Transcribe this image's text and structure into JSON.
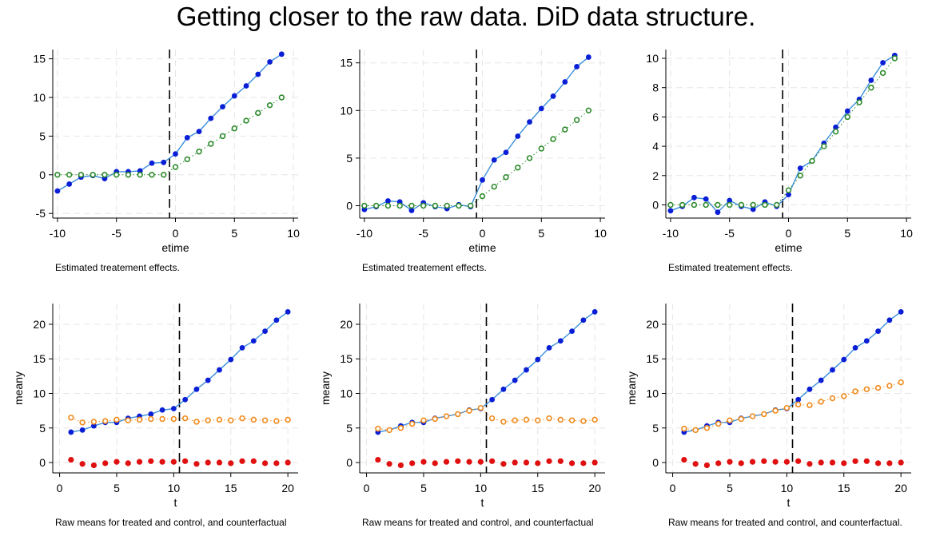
{
  "title": "Getting closer to the raw data.  DiD data structure.",
  "colors": {
    "treated_line": "#3a8fdc",
    "treated_marker": "#0a1ed6",
    "counterfactual": "#2e8b2e",
    "raw_counterfactual": "#f08a1c",
    "control": "#e01010",
    "grid": "#e6e6e6",
    "cutoff": "#000000"
  },
  "chart_data": [
    {
      "type": "scatter",
      "xlabel": "etime",
      "ylabel": "",
      "note": "Estimated treatement effects.",
      "xticks": [
        -10,
        -5,
        0,
        5,
        10
      ],
      "yticks": [
        -5,
        0,
        5,
        10,
        15
      ],
      "xlim": [
        -10.4,
        10.4
      ],
      "ylim": [
        -5.6,
        16.2
      ],
      "cutoff": -0.5,
      "grid": true,
      "series": [
        {
          "role": "estimate",
          "x": [
            -10,
            -9,
            -8,
            -7,
            -6,
            -5,
            -4,
            -3,
            -2,
            -1,
            0,
            1,
            2,
            3,
            4,
            5,
            6,
            7,
            8,
            9
          ],
          "y": [
            -2.1,
            -1.2,
            -0.3,
            -0.1,
            -0.5,
            0.4,
            0.4,
            0.5,
            1.5,
            1.6,
            2.7,
            4.8,
            5.6,
            7.3,
            8.8,
            10.2,
            11.5,
            13.0,
            14.6,
            15.6
          ]
        },
        {
          "role": "true",
          "x": [
            -10,
            -9,
            -8,
            -7,
            -6,
            -5,
            -4,
            -3,
            -2,
            -1,
            0,
            1,
            2,
            3,
            4,
            5,
            6,
            7,
            8,
            9
          ],
          "y": [
            0,
            0,
            0,
            0,
            0,
            0,
            0,
            0,
            0,
            0,
            1,
            2,
            3,
            4,
            5,
            6,
            7,
            8,
            9,
            10
          ]
        }
      ]
    },
    {
      "type": "scatter",
      "xlabel": "etime",
      "ylabel": "",
      "note": "Estimated treatement effects.",
      "xticks": [
        -10,
        -5,
        0,
        5,
        10
      ],
      "yticks": [
        0,
        5,
        10,
        15
      ],
      "xlim": [
        -10.4,
        10.4
      ],
      "ylim": [
        -1.3,
        16.4
      ],
      "cutoff": -0.5,
      "grid": true,
      "series": [
        {
          "role": "estimate",
          "x": [
            -10,
            -9,
            -8,
            -7,
            -6,
            -5,
            -4,
            -3,
            -2,
            -1,
            0,
            1,
            2,
            3,
            4,
            5,
            6,
            7,
            8,
            9
          ],
          "y": [
            -0.4,
            -0.1,
            0.5,
            0.4,
            -0.5,
            0.3,
            -0.1,
            -0.3,
            0.1,
            -0.1,
            2.7,
            4.8,
            5.6,
            7.3,
            8.8,
            10.2,
            11.5,
            13.0,
            14.6,
            15.6
          ]
        },
        {
          "role": "true",
          "x": [
            -10,
            -9,
            -8,
            -7,
            -6,
            -5,
            -4,
            -3,
            -2,
            -1,
            0,
            1,
            2,
            3,
            4,
            5,
            6,
            7,
            8,
            9
          ],
          "y": [
            0,
            0,
            0,
            0,
            0,
            0,
            0,
            0,
            0,
            0,
            1,
            2,
            3,
            4,
            5,
            6,
            7,
            8,
            9,
            10
          ]
        }
      ]
    },
    {
      "type": "scatter",
      "xlabel": "etime",
      "ylabel": "",
      "note": "Estimated treatement effects.",
      "xticks": [
        -10,
        -5,
        0,
        5,
        10
      ],
      "yticks": [
        0,
        2,
        4,
        6,
        8,
        10
      ],
      "xlim": [
        -10.4,
        10.4
      ],
      "ylim": [
        -0.9,
        10.6
      ],
      "cutoff": -0.5,
      "grid": true,
      "series": [
        {
          "role": "estimate",
          "x": [
            -10,
            -9,
            -8,
            -7,
            -6,
            -5,
            -4,
            -3,
            -2,
            -1,
            0,
            1,
            2,
            3,
            4,
            5,
            6,
            7,
            8,
            9
          ],
          "y": [
            -0.4,
            -0.1,
            0.5,
            0.4,
            -0.5,
            0.3,
            -0.1,
            -0.3,
            0.2,
            -0.1,
            0.7,
            2.5,
            3.0,
            4.2,
            5.3,
            6.4,
            7.2,
            8.5,
            9.7,
            10.2
          ]
        },
        {
          "role": "true",
          "x": [
            -10,
            -9,
            -8,
            -7,
            -6,
            -5,
            -4,
            -3,
            -2,
            -1,
            0,
            1,
            2,
            3,
            4,
            5,
            6,
            7,
            8,
            9
          ],
          "y": [
            0,
            0,
            0,
            0,
            0,
            0,
            0,
            0,
            0,
            0,
            1,
            2,
            3,
            4,
            5,
            6,
            7,
            8,
            9,
            10
          ]
        }
      ]
    },
    {
      "type": "scatter",
      "xlabel": "t",
      "ylabel": "meany",
      "note": "Raw means for treated and control, and counterfactual",
      "xticks": [
        0,
        5,
        10,
        15,
        20
      ],
      "yticks": [
        0,
        5,
        10,
        15,
        20
      ],
      "xlim": [
        -0.6,
        20.9
      ],
      "ylim": [
        -1.5,
        23.0
      ],
      "cutoff": 10.5,
      "grid": true,
      "series": [
        {
          "role": "treated",
          "x": [
            1,
            2,
            3,
            4,
            5,
            6,
            7,
            8,
            9,
            10,
            11,
            12,
            13,
            14,
            15,
            16,
            17,
            18,
            19,
            20
          ],
          "y": [
            4.4,
            4.7,
            5.3,
            5.8,
            5.8,
            6.4,
            6.7,
            7.0,
            7.6,
            7.8,
            9.1,
            10.6,
            11.9,
            13.4,
            14.9,
            16.6,
            17.6,
            19.0,
            20.6,
            21.8
          ]
        },
        {
          "role": "counterfactual",
          "x": [
            1,
            2,
            3,
            4,
            5,
            6,
            7,
            8,
            9,
            10,
            11,
            12,
            13,
            14,
            15,
            16,
            17,
            18,
            19,
            20
          ],
          "y": [
            6.5,
            5.8,
            5.9,
            6.0,
            6.2,
            6.1,
            6.2,
            6.3,
            6.3,
            6.3,
            6.4,
            5.9,
            6.1,
            6.2,
            6.1,
            6.4,
            6.2,
            6.1,
            6.0,
            6.2
          ]
        },
        {
          "role": "control",
          "x": [
            1,
            2,
            3,
            4,
            5,
            6,
            7,
            8,
            9,
            10,
            11,
            12,
            13,
            14,
            15,
            16,
            17,
            18,
            19,
            20
          ],
          "y": [
            0.4,
            -0.2,
            -0.4,
            -0.1,
            0.1,
            -0.1,
            0.1,
            0.2,
            0.1,
            0.1,
            0.2,
            -0.2,
            0.0,
            0.0,
            -0.1,
            0.2,
            0.2,
            -0.1,
            -0.1,
            0.0
          ]
        }
      ]
    },
    {
      "type": "scatter",
      "xlabel": "t",
      "ylabel": "meany",
      "note": "Raw means for treated and control, and counterfactual",
      "xticks": [
        0,
        5,
        10,
        15,
        20
      ],
      "yticks": [
        0,
        5,
        10,
        15,
        20
      ],
      "xlim": [
        -0.6,
        20.9
      ],
      "ylim": [
        -1.5,
        23.0
      ],
      "cutoff": 10.5,
      "grid": true,
      "series": [
        {
          "role": "treated",
          "x": [
            1,
            2,
            3,
            4,
            5,
            6,
            7,
            8,
            9,
            10,
            11,
            12,
            13,
            14,
            15,
            16,
            17,
            18,
            19,
            20
          ],
          "y": [
            4.4,
            4.7,
            5.3,
            5.8,
            5.8,
            6.4,
            6.7,
            7.0,
            7.6,
            7.8,
            9.1,
            10.6,
            11.9,
            13.4,
            14.9,
            16.6,
            17.6,
            19.0,
            20.6,
            21.8
          ]
        },
        {
          "role": "counterfactual",
          "x": [
            1,
            2,
            3,
            4,
            5,
            6,
            7,
            8,
            9,
            10,
            11,
            12,
            13,
            14,
            15,
            16,
            17,
            18,
            19,
            20
          ],
          "y": [
            4.9,
            4.7,
            5.0,
            5.6,
            6.1,
            6.3,
            6.7,
            7.0,
            7.5,
            7.9,
            6.4,
            5.9,
            6.1,
            6.2,
            6.1,
            6.4,
            6.2,
            6.1,
            6.0,
            6.2
          ]
        },
        {
          "role": "control",
          "x": [
            1,
            2,
            3,
            4,
            5,
            6,
            7,
            8,
            9,
            10,
            11,
            12,
            13,
            14,
            15,
            16,
            17,
            18,
            19,
            20
          ],
          "y": [
            0.4,
            -0.2,
            -0.4,
            -0.1,
            0.1,
            -0.1,
            0.1,
            0.2,
            0.1,
            0.1,
            0.2,
            -0.2,
            0.0,
            0.0,
            -0.1,
            0.2,
            0.2,
            -0.1,
            -0.1,
            0.0
          ]
        }
      ]
    },
    {
      "type": "scatter",
      "xlabel": "t",
      "ylabel": "meany",
      "note": "Raw means for treated and control, and counterfactual.",
      "xticks": [
        0,
        5,
        10,
        15,
        20
      ],
      "yticks": [
        0,
        5,
        10,
        15,
        20
      ],
      "xlim": [
        -0.6,
        20.9
      ],
      "ylim": [
        -1.5,
        23.0
      ],
      "cutoff": 10.5,
      "grid": true,
      "series": [
        {
          "role": "treated",
          "x": [
            1,
            2,
            3,
            4,
            5,
            6,
            7,
            8,
            9,
            10,
            11,
            12,
            13,
            14,
            15,
            16,
            17,
            18,
            19,
            20
          ],
          "y": [
            4.4,
            4.7,
            5.3,
            5.8,
            5.8,
            6.4,
            6.7,
            7.0,
            7.6,
            7.8,
            9.1,
            10.6,
            11.9,
            13.4,
            14.9,
            16.6,
            17.6,
            19.0,
            20.6,
            21.8
          ]
        },
        {
          "role": "counterfactual",
          "x": [
            1,
            2,
            3,
            4,
            5,
            6,
            7,
            8,
            9,
            10,
            11,
            12,
            13,
            14,
            15,
            16,
            17,
            18,
            19,
            20
          ],
          "y": [
            4.9,
            4.7,
            5.0,
            5.6,
            6.1,
            6.3,
            6.7,
            7.0,
            7.5,
            7.9,
            8.4,
            8.3,
            8.8,
            9.3,
            9.6,
            10.3,
            10.6,
            10.8,
            11.1,
            11.6
          ]
        },
        {
          "role": "control",
          "x": [
            1,
            2,
            3,
            4,
            5,
            6,
            7,
            8,
            9,
            10,
            11,
            12,
            13,
            14,
            15,
            16,
            17,
            18,
            19,
            20
          ],
          "y": [
            0.4,
            -0.2,
            -0.4,
            -0.1,
            0.1,
            -0.1,
            0.1,
            0.2,
            0.1,
            0.1,
            0.2,
            -0.2,
            0.0,
            0.0,
            -0.1,
            0.2,
            0.2,
            -0.1,
            -0.1,
            0.0
          ]
        }
      ]
    }
  ]
}
